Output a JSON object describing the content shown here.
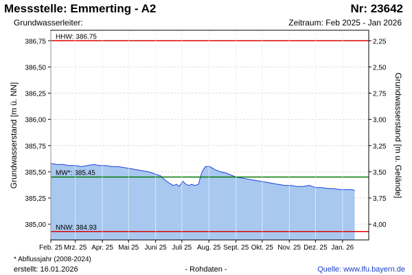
{
  "header": {
    "title": "Messstelle: Emmerting - A2",
    "number": "Nr: 23642",
    "aquifer": "Grundwasserleiter:",
    "period": "Zeitraum: Feb 2025 - Jan 2026"
  },
  "footer": {
    "footnote": "* Abflussjahr (2008-2024)",
    "created": "erstellt:  16.01.2026",
    "raw": "- Rohdaten -",
    "source": "Quelle:  www.lfu.bayern.de"
  },
  "colors": {
    "fill": "#a8c8f0",
    "line": "#1f3ee0",
    "hhw": "#dd0000",
    "nnw": "#dd0000",
    "mw": "#007700",
    "grid": "#dddddd"
  },
  "chart_data": {
    "type": "area",
    "ylabel": "Grundwasserstand [m ü. NN]",
    "ylabel_right": "Grundwasserstand [m u. Gelände]",
    "ylim": [
      384.85,
      386.85
    ],
    "yticks": [
      "385,00",
      "385,25",
      "385,50",
      "385,75",
      "386,00",
      "386,25",
      "386,50",
      "386,75"
    ],
    "yticks_values": [
      385.0,
      385.25,
      385.5,
      385.75,
      386.0,
      386.25,
      386.5,
      386.75
    ],
    "yticks_right": [
      "2,25",
      "2,50",
      "2,75",
      "3,00",
      "3,25",
      "3,50",
      "3,75",
      "4,00"
    ],
    "yticks_right_values": [
      2.25,
      2.5,
      2.75,
      3.0,
      3.25,
      3.5,
      3.75,
      4.0
    ],
    "xlim": [
      "2025-02-01",
      "2026-01-31"
    ],
    "xticks": [
      "Feb. 25",
      "Mrz. 25",
      "Apr. 25",
      "Mai 25",
      "Juni 25",
      "Juli 25",
      "Aug. 25",
      "Sept. 25",
      "Okt. 25",
      "Nov. 25",
      "Dez. 25",
      "Jan. 26"
    ],
    "xticks_dates": [
      "2025-02-01",
      "2025-03-01",
      "2025-04-01",
      "2025-05-01",
      "2025-06-01",
      "2025-07-01",
      "2025-08-01",
      "2025-09-01",
      "2025-10-01",
      "2025-11-01",
      "2025-12-01",
      "2026-01-01"
    ],
    "grid": true,
    "reference_lines": [
      {
        "label": "HHW: 386.75",
        "value": 386.75,
        "color": "#dd0000"
      },
      {
        "label": "MW*: 385.45",
        "value": 385.45,
        "color": "#007700"
      },
      {
        "label": "NNW: 384.93",
        "value": 384.93,
        "color": "#dd0000"
      }
    ],
    "series": [
      {
        "x": [
          "2025-02-01",
          "2025-02-08",
          "2025-02-15",
          "2025-02-22",
          "2025-03-01",
          "2025-03-08",
          "2025-03-15",
          "2025-03-22",
          "2025-03-29",
          "2025-04-05",
          "2025-04-12",
          "2025-04-19",
          "2025-04-26",
          "2025-05-03",
          "2025-05-10",
          "2025-05-17",
          "2025-05-24",
          "2025-05-31",
          "2025-06-07",
          "2025-06-12",
          "2025-06-17",
          "2025-06-21",
          "2025-06-25",
          "2025-06-28",
          "2025-07-02",
          "2025-07-06",
          "2025-07-09",
          "2025-07-12",
          "2025-07-16",
          "2025-07-20",
          "2025-07-24",
          "2025-07-28",
          "2025-08-02",
          "2025-08-08",
          "2025-08-14",
          "2025-08-20",
          "2025-08-26",
          "2025-09-01",
          "2025-09-08",
          "2025-09-15",
          "2025-09-22",
          "2025-09-29",
          "2025-10-06",
          "2025-10-13",
          "2025-10-20",
          "2025-10-27",
          "2025-11-03",
          "2025-11-10",
          "2025-11-17",
          "2025-11-24",
          "2025-12-01",
          "2025-12-08",
          "2025-12-15",
          "2025-12-22",
          "2025-12-29",
          "2026-01-06",
          "2026-01-12",
          "2026-01-15"
        ],
        "values": [
          385.58,
          385.57,
          385.57,
          385.56,
          385.56,
          385.55,
          385.56,
          385.57,
          385.56,
          385.56,
          385.55,
          385.55,
          385.54,
          385.53,
          385.52,
          385.51,
          385.5,
          385.48,
          385.46,
          385.42,
          385.39,
          385.37,
          385.38,
          385.36,
          385.41,
          385.38,
          385.37,
          385.38,
          385.37,
          385.38,
          385.5,
          385.55,
          385.55,
          385.52,
          385.5,
          385.49,
          385.47,
          385.45,
          385.44,
          385.43,
          385.42,
          385.41,
          385.4,
          385.39,
          385.38,
          385.37,
          385.37,
          385.36,
          385.36,
          385.37,
          385.35,
          385.35,
          385.34,
          385.34,
          385.33,
          385.33,
          385.33,
          385.32
        ]
      }
    ]
  }
}
